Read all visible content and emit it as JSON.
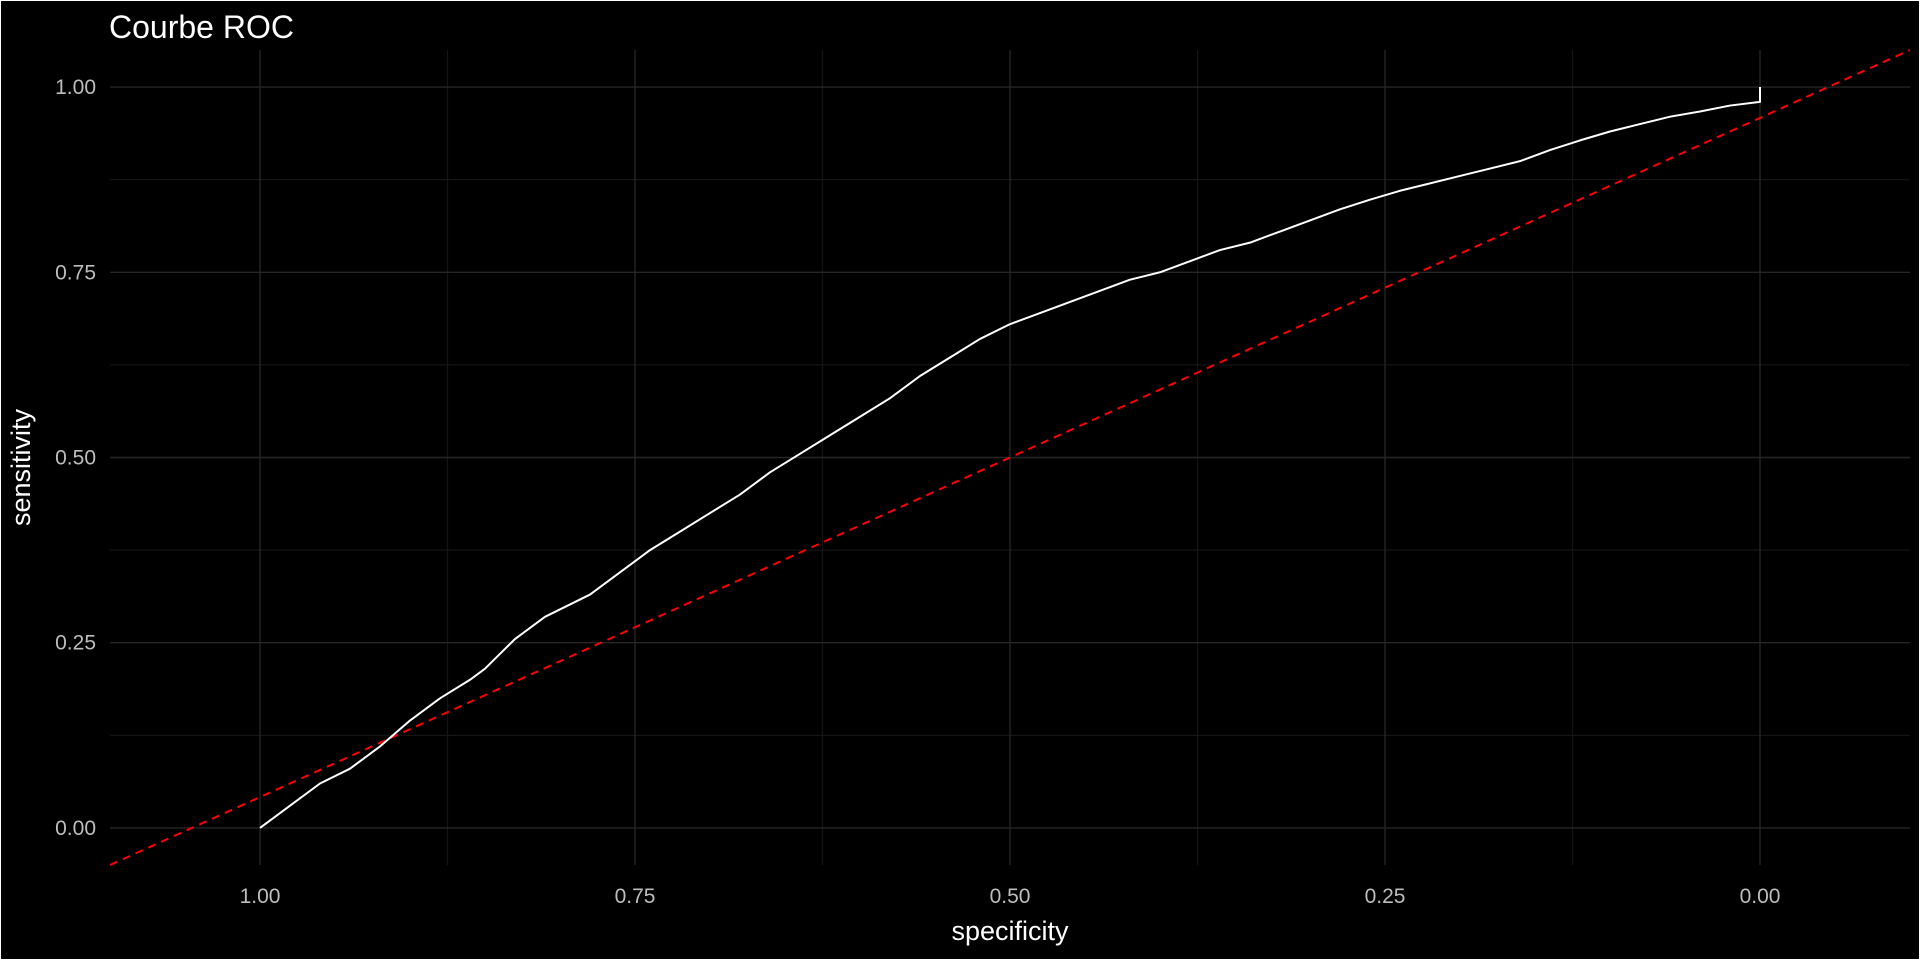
{
  "chart_data": {
    "type": "line",
    "title": "Courbe ROC",
    "xlabel": "specificity",
    "ylabel": "sensitivity",
    "x_reversed": true,
    "xlim": [
      1.1,
      -0.1
    ],
    "ylim": [
      -0.05,
      1.05
    ],
    "grid": true,
    "legend": "none",
    "x_ticks": [
      1.0,
      0.75,
      0.5,
      0.25,
      0.0
    ],
    "x_tick_labels": [
      "1.00",
      "0.75",
      "0.50",
      "0.25",
      "0.00"
    ],
    "y_ticks": [
      0.0,
      0.25,
      0.5,
      0.75,
      1.0
    ],
    "y_tick_labels": [
      "0.00",
      "0.25",
      "0.50",
      "0.75",
      "1.00"
    ],
    "series": [
      {
        "kind": "roc-curve",
        "color": "#ffffff",
        "style": "solid",
        "points": [
          [
            1.0,
            0.0
          ],
          [
            0.98,
            0.03
          ],
          [
            0.96,
            0.06
          ],
          [
            0.94,
            0.08
          ],
          [
            0.92,
            0.11
          ],
          [
            0.9,
            0.145
          ],
          [
            0.88,
            0.175
          ],
          [
            0.86,
            0.2
          ],
          [
            0.85,
            0.215
          ],
          [
            0.84,
            0.235
          ],
          [
            0.83,
            0.255
          ],
          [
            0.81,
            0.285
          ],
          [
            0.78,
            0.315
          ],
          [
            0.76,
            0.345
          ],
          [
            0.74,
            0.375
          ],
          [
            0.72,
            0.4
          ],
          [
            0.7,
            0.425
          ],
          [
            0.68,
            0.45
          ],
          [
            0.66,
            0.48
          ],
          [
            0.64,
            0.505
          ],
          [
            0.62,
            0.53
          ],
          [
            0.6,
            0.555
          ],
          [
            0.58,
            0.58
          ],
          [
            0.56,
            0.61
          ],
          [
            0.54,
            0.635
          ],
          [
            0.52,
            0.66
          ],
          [
            0.5,
            0.68
          ],
          [
            0.48,
            0.695
          ],
          [
            0.46,
            0.71
          ],
          [
            0.44,
            0.725
          ],
          [
            0.42,
            0.74
          ],
          [
            0.4,
            0.75
          ],
          [
            0.38,
            0.765
          ],
          [
            0.36,
            0.78
          ],
          [
            0.34,
            0.79
          ],
          [
            0.32,
            0.805
          ],
          [
            0.3,
            0.82
          ],
          [
            0.28,
            0.835
          ],
          [
            0.26,
            0.848
          ],
          [
            0.24,
            0.86
          ],
          [
            0.22,
            0.87
          ],
          [
            0.2,
            0.88
          ],
          [
            0.18,
            0.89
          ],
          [
            0.16,
            0.9
          ],
          [
            0.14,
            0.915
          ],
          [
            0.12,
            0.928
          ],
          [
            0.1,
            0.94
          ],
          [
            0.08,
            0.95
          ],
          [
            0.06,
            0.96
          ],
          [
            0.04,
            0.967
          ],
          [
            0.02,
            0.975
          ],
          [
            0.0,
            0.98
          ],
          [
            -0.02,
            0.99
          ],
          [
            -0.04,
            0.995
          ],
          [
            0.0,
            1.0
          ]
        ]
      },
      {
        "kind": "reference-diagonal",
        "color": "#ff0000",
        "style": "dashed",
        "points": [
          [
            1.1,
            -0.05
          ],
          [
            -0.1,
            1.05
          ]
        ]
      }
    ]
  },
  "colors": {
    "background": "#000000",
    "frame": "#ffffff",
    "grid_major": "#262626",
    "grid_minor": "#141414",
    "text": "#ffffff",
    "tick_text": "#bdbdbd"
  }
}
